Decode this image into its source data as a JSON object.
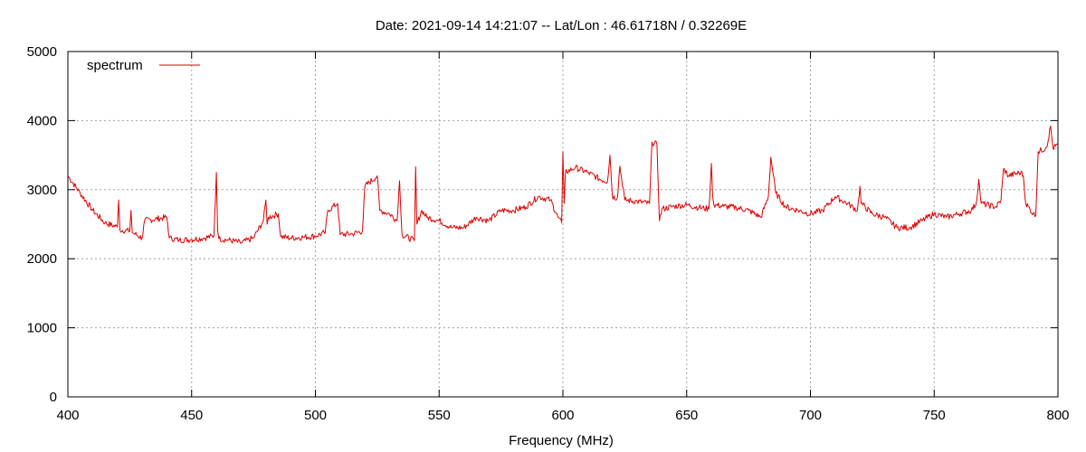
{
  "chart_data": {
    "type": "line",
    "title": "Date: 2021-09-14 14:21:07  --  Lat/Lon : 46.61718N / 0.32269E",
    "xlabel": "Frequency (MHz)",
    "ylabel": "",
    "xlim": [
      400,
      800
    ],
    "ylim": [
      0,
      5000
    ],
    "x_ticks": [
      400,
      450,
      500,
      550,
      600,
      650,
      700,
      750,
      800
    ],
    "y_ticks": [
      0,
      1000,
      2000,
      3000,
      4000,
      5000
    ],
    "grid": true,
    "legend_position": "top-left",
    "colors": {
      "series": "#dd0000",
      "grid": "#a0a0a0",
      "frame": "#000000"
    },
    "series": [
      {
        "name": "spectrum",
        "x": [
          400,
          405,
          410,
          415,
          420,
          420.5,
          421,
          425,
          425.5,
          426,
          430,
          431,
          440,
          441,
          445,
          450,
          455,
          459,
          460,
          460.5,
          461,
          465,
          470,
          475,
          479,
          480,
          480.5,
          481,
          485,
          486,
          490,
          495,
          500,
          504,
          505,
          509,
          510,
          515,
          519,
          520,
          525,
          526,
          530,
          533,
          534,
          534.5,
          535,
          540,
          540.5,
          541,
          543,
          545,
          550,
          555,
          560,
          565,
          570,
          575,
          580,
          585,
          590,
          595,
          598,
          599.5,
          600,
          600.5,
          601,
          605,
          610,
          615,
          618,
          619,
          620,
          622,
          623,
          625,
          630,
          635,
          636,
          638,
          639,
          640,
          645,
          650,
          655,
          659,
          660,
          660.5,
          661,
          665,
          670,
          675,
          680,
          683,
          684,
          686,
          690,
          695,
          700,
          705,
          710,
          715,
          719,
          720,
          720.5,
          725,
          730,
          735,
          740,
          745,
          750,
          755,
          760,
          765,
          767,
          768,
          769,
          775,
          777,
          778,
          780,
          785,
          786,
          787,
          790,
          791,
          792,
          795,
          796,
          797,
          798,
          800
        ],
        "values": [
          3200,
          2950,
          2700,
          2520,
          2460,
          2850,
          2420,
          2400,
          2700,
          2380,
          2300,
          2550,
          2600,
          2300,
          2270,
          2280,
          2300,
          2330,
          3250,
          2400,
          2290,
          2270,
          2230,
          2300,
          2550,
          2850,
          2500,
          2600,
          2650,
          2320,
          2300,
          2310,
          2330,
          2380,
          2700,
          2800,
          2350,
          2360,
          2400,
          3050,
          3200,
          2700,
          2650,
          2550,
          3130,
          2700,
          2350,
          2260,
          3330,
          2500,
          2700,
          2600,
          2550,
          2450,
          2450,
          2600,
          2550,
          2700,
          2700,
          2750,
          2900,
          2850,
          2600,
          2520,
          3550,
          2800,
          3250,
          3320,
          3250,
          3150,
          3120,
          3500,
          2900,
          2880,
          3340,
          2850,
          2830,
          2800,
          3690,
          3650,
          2550,
          2720,
          2760,
          2780,
          2740,
          2720,
          3380,
          2900,
          2780,
          2760,
          2740,
          2700,
          2600,
          2900,
          3470,
          2950,
          2750,
          2700,
          2650,
          2700,
          2900,
          2800,
          2700,
          3050,
          2800,
          2650,
          2600,
          2450,
          2450,
          2550,
          2650,
          2600,
          2650,
          2700,
          2800,
          3150,
          2800,
          2750,
          2850,
          3300,
          3200,
          3250,
          3200,
          2800,
          2650,
          2620,
          3550,
          3600,
          3700,
          3920,
          3600,
          3650
        ]
      }
    ]
  }
}
